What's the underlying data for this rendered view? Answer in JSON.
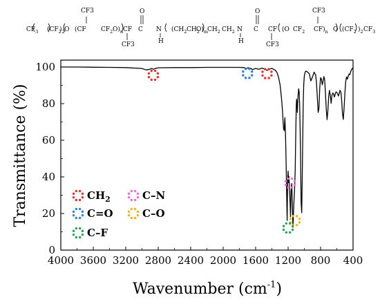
{
  "structure": {
    "segments": [
      {
        "text": "CF",
        "sub": "3"
      },
      {
        "text": "(CF",
        "sub": "2"
      },
      {
        "text": ")",
        "sub": "2"
      },
      {
        "text": "O"
      },
      {
        "text": "(CF"
      },
      {
        "text": "CF",
        "sub": "2"
      },
      {
        "text": "O)",
        "sub": "n"
      },
      {
        "text": "CF"
      },
      {
        "text": "C"
      },
      {
        "text": "N"
      },
      {
        "text": "(CH",
        "sub": "2"
      },
      {
        "text": "CH",
        "sub": "2"
      },
      {
        "text": "O)",
        "sub": "m"
      },
      {
        "text": "CH",
        "sub": "2"
      },
      {
        "text": "CH",
        "sub": "2"
      },
      {
        "text": "N"
      },
      {
        "text": "C"
      },
      {
        "text": "CF"
      },
      {
        "text": "(O"
      },
      {
        "text": "CF",
        "sub": "2"
      },
      {
        "text": "CF)",
        "sub": "n"
      },
      {
        "text": "O"
      },
      {
        "text": "(CF",
        "sub": "2"
      },
      {
        "text": ")",
        "sub": "2"
      },
      {
        "text": "CF",
        "sub": "3"
      }
    ],
    "labels": {
      "cf3_top_left": "CF3",
      "cf3_bottom_left": "CF3",
      "cf3_top_right": "CF3",
      "cf3_bottom_right": "CF3",
      "carbonyl_o": "O",
      "amide_h": "H"
    }
  },
  "chart_data": {
    "type": "line",
    "title": "",
    "xlabel": "Wavenumber (cm",
    "xlabel_sup": "-1",
    "xlabel_close": ")",
    "ylabel": "Transmittance (%)",
    "xlim": [
      4000,
      400
    ],
    "ylim": [
      0,
      100
    ],
    "x_reversed": true,
    "x_ticks": [
      4000,
      3600,
      3200,
      2800,
      2400,
      2000,
      1600,
      1200,
      800,
      400
    ],
    "y_ticks": [
      0,
      20,
      40,
      60,
      80,
      100
    ],
    "grid": false,
    "series": [
      {
        "color": "#000000",
        "x": [
          4000,
          3800,
          3600,
          3400,
          3200,
          3000,
          2950,
          2920,
          2880,
          2860,
          2830,
          2800,
          2600,
          2400,
          2200,
          2000,
          1800,
          1740,
          1720,
          1690,
          1660,
          1640,
          1600,
          1560,
          1520,
          1480,
          1460,
          1430,
          1400,
          1380,
          1360,
          1340,
          1320,
          1300,
          1290,
          1280,
          1270,
          1262,
          1255,
          1248,
          1240,
          1232,
          1225,
          1218,
          1212,
          1206,
          1200,
          1195,
          1190,
          1185,
          1178,
          1170,
          1163,
          1155,
          1148,
          1140,
          1130,
          1122,
          1118,
          1112,
          1106,
          1100,
          1095,
          1090,
          1086,
          1082,
          1076,
          1070,
          1064,
          1058,
          1052,
          1046,
          1040,
          1032,
          1026,
          1020,
          1014,
          1008,
          1000,
          990,
          980,
          970,
          960,
          950,
          940,
          920,
          900,
          880,
          860,
          850,
          840,
          830,
          820,
          810,
          800,
          790,
          780,
          770,
          760,
          750,
          740,
          730,
          720,
          710,
          700,
          690,
          680,
          670,
          660,
          650,
          640,
          630,
          620,
          610,
          600,
          590,
          580,
          570,
          560,
          550,
          540,
          530,
          520,
          510,
          500,
          490,
          480,
          470,
          460,
          450,
          440,
          430,
          420,
          410,
          400
        ],
        "y": [
          100,
          100,
          99.9,
          99.8,
          99.7,
          99.2,
          98.4,
          98.6,
          99.2,
          98.8,
          99.3,
          99.6,
          99.7,
          99.7,
          99.8,
          99.8,
          99.8,
          99.7,
          99.2,
          99.6,
          99.3,
          98.6,
          99.2,
          98.8,
          99.4,
          98.7,
          98.2,
          98.8,
          99.3,
          98.8,
          98.3,
          97.2,
          94.8,
          90.5,
          86.8,
          82.1,
          76.4,
          70.2,
          66.1,
          65.2,
          72.4,
          63.8,
          48.2,
          30.6,
          16.2,
          38.1,
          43.2,
          36.8,
          40.2,
          36.1,
          28.4,
          18.2,
          32.1,
          36.4,
          25.2,
          12.4,
          24.6,
          31.8,
          35.4,
          44.2,
          61.8,
          78.6,
          82.4,
          80.1,
          75.2,
          80.6,
          85.4,
          88.1,
          86.3,
          79.6,
          66.2,
          48.8,
          26.2,
          20.4,
          38.6,
          58.8,
          80.2,
          90.4,
          95.2,
          97.3,
          97.8,
          97.6,
          97.2,
          96.8,
          96.4,
          92.4,
          94.6,
          97.2,
          95.6,
          91.2,
          83.4,
          75.2,
          77.4,
          88.6,
          94.2,
          93.4,
          90.3,
          92.1,
          94.8,
          93.1,
          85.2,
          77.1,
          71.3,
          76.4,
          84.2,
          87.2,
          84.4,
          80.2,
          84.6,
          85.8,
          85.3,
          83.6,
          85.1,
          86.4,
          86.1,
          85.4,
          84.2,
          85.6,
          87.3,
          86.2,
          81.4,
          74.6,
          71.4,
          78.2,
          86.4,
          92.2,
          94.6,
          93.4,
          94.8,
          96.2,
          95.8,
          97.4,
          98.4,
          99.2,
          99.6
        ]
      }
    ],
    "legend": [
      {
        "label": "CH",
        "sub": "2",
        "color": "#e8312f"
      },
      {
        "label": "C–N",
        "color": "#ea6fd6"
      },
      {
        "label": "C=O",
        "color": "#2f7fe0"
      },
      {
        "label": "C–O",
        "color": "#f2b21c"
      },
      {
        "label": "C–F",
        "color": "#26a556"
      }
    ],
    "markers": [
      {
        "group": "CH2",
        "color": "#e8312f",
        "x": 2860,
        "y": 95.5
      },
      {
        "group": "CH2",
        "color": "#e8312f",
        "x": 1460,
        "y": 96.4
      },
      {
        "group": "C=O",
        "color": "#2f7fe0",
        "x": 1700,
        "y": 96.5
      },
      {
        "group": "C-N",
        "color": "#ea6fd6",
        "x": 1175,
        "y": 36.6
      },
      {
        "group": "C-O",
        "color": "#f2b21c",
        "x": 1115,
        "y": 16.1
      },
      {
        "group": "C-F",
        "color": "#26a556",
        "x": 1200,
        "y": 12.1
      }
    ]
  }
}
